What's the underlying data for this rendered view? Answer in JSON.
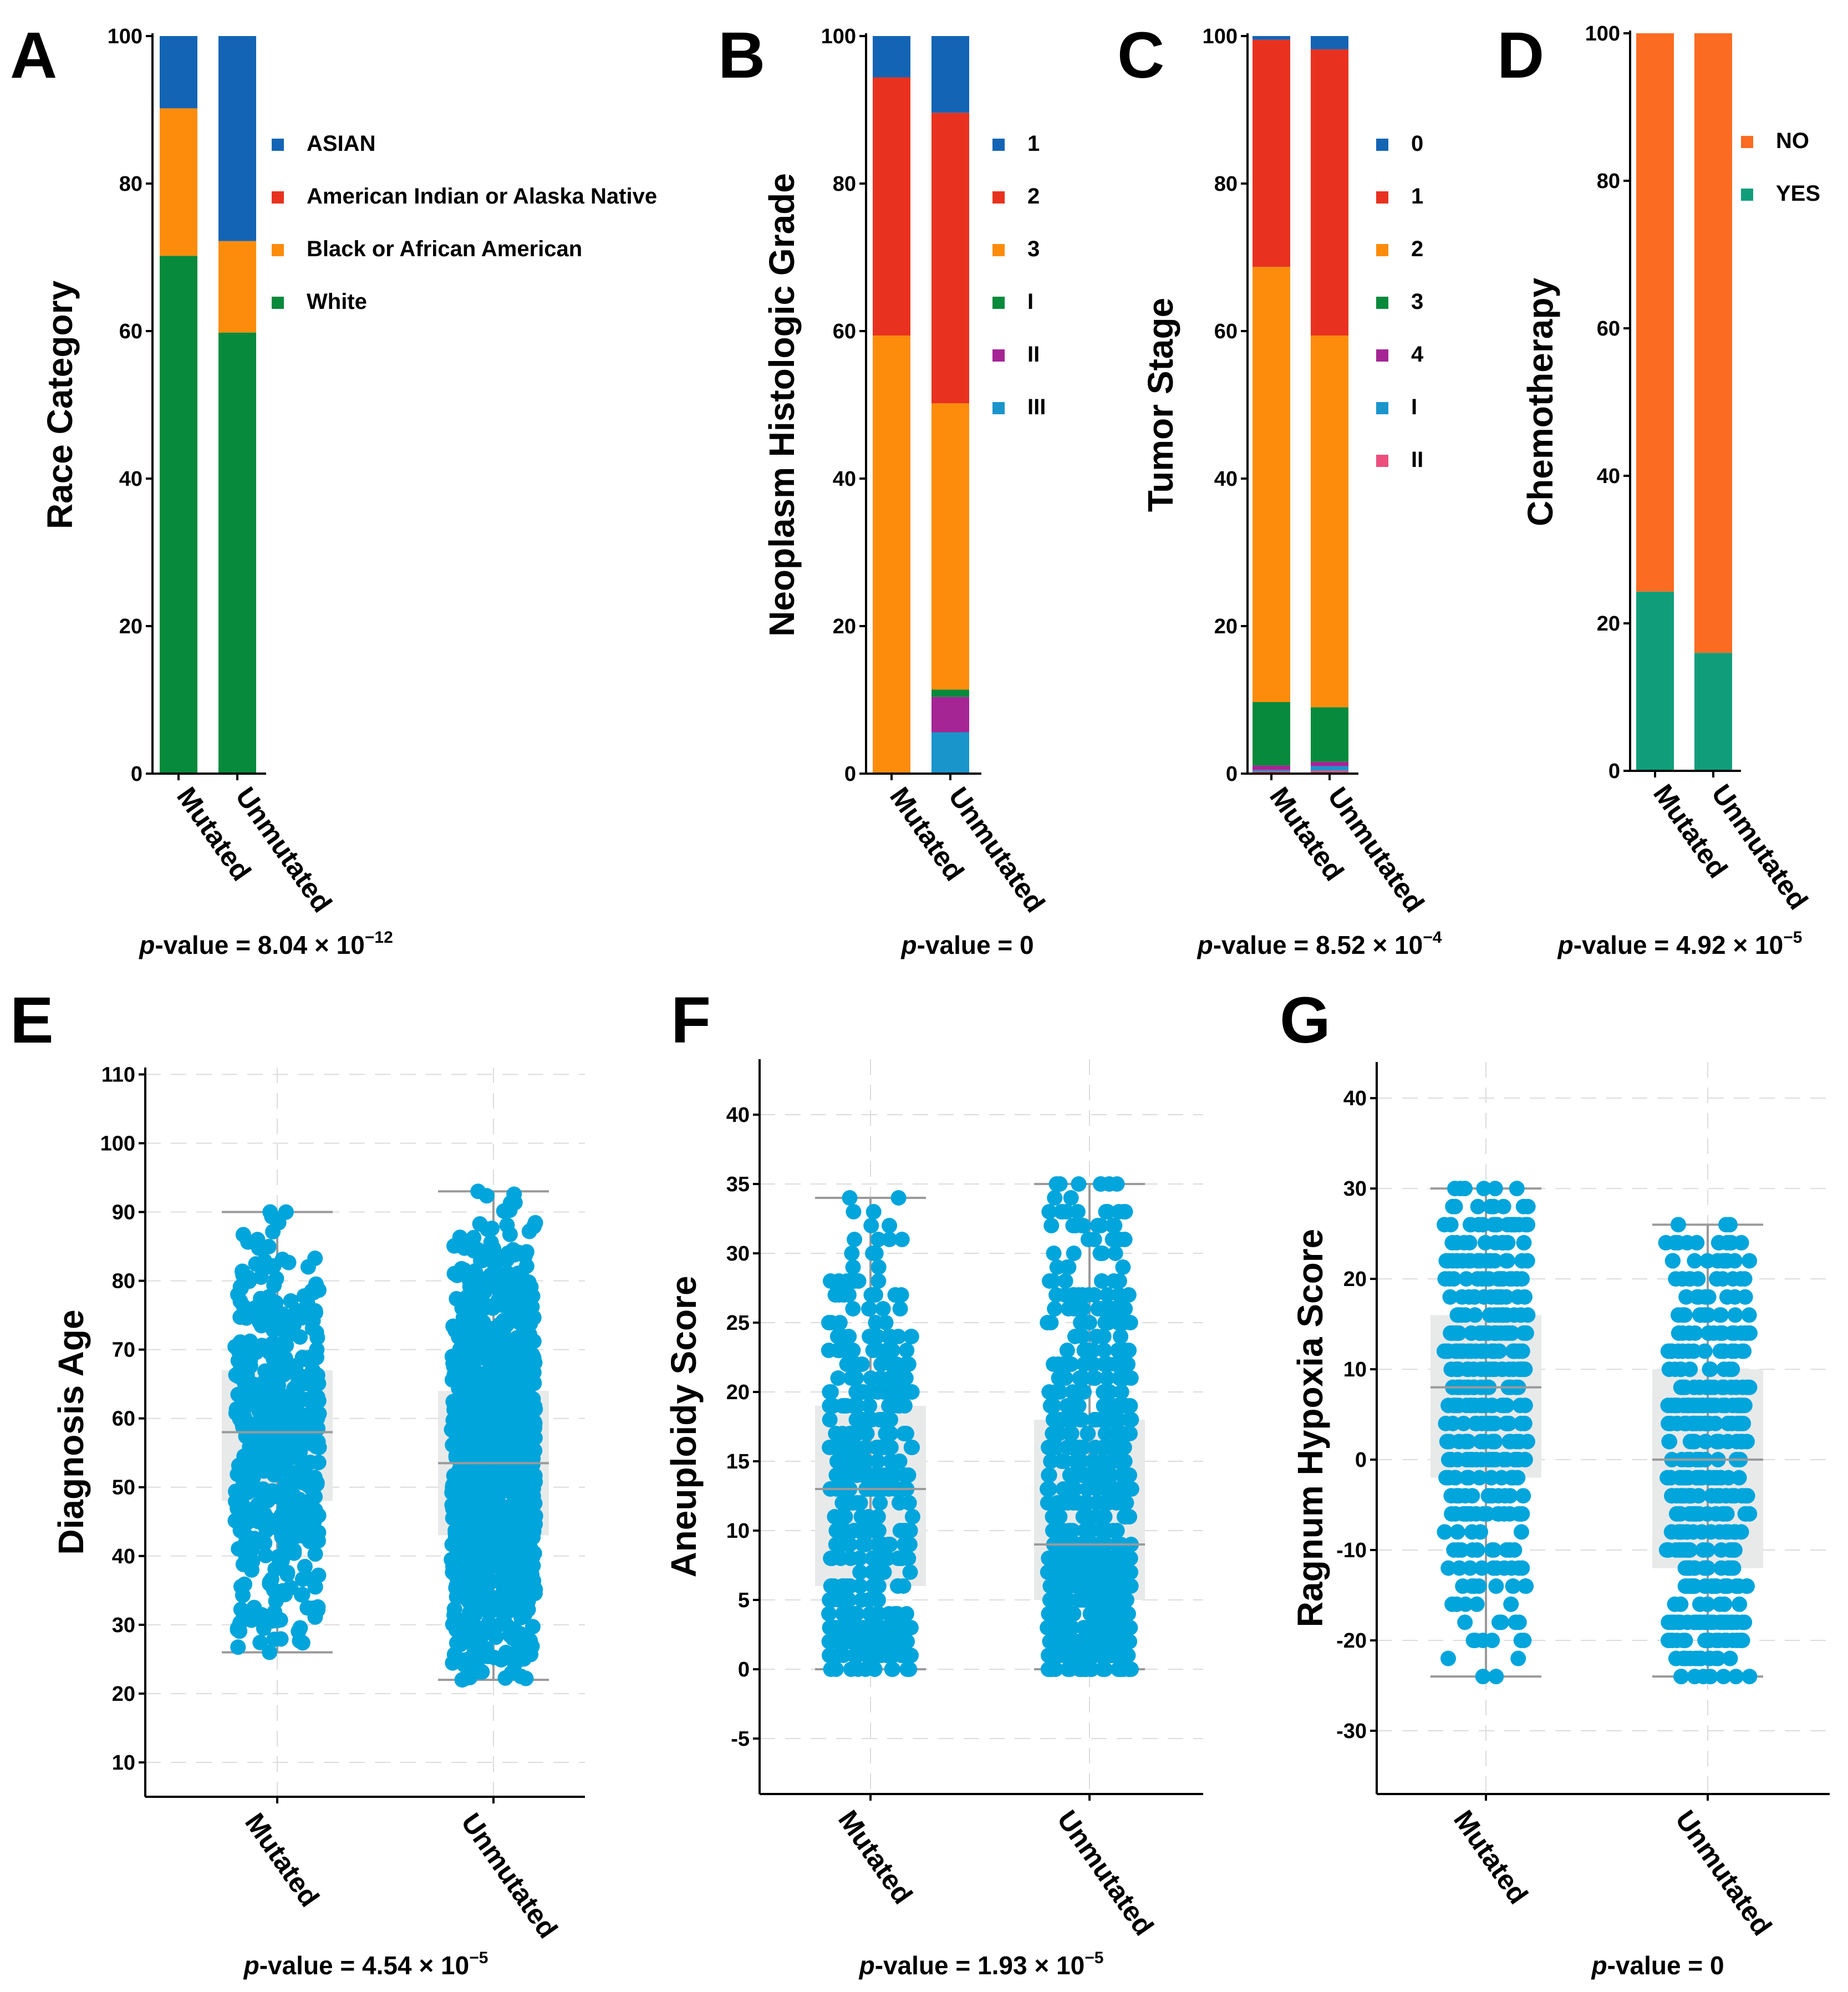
{
  "chart_data": [
    {
      "panel": "A",
      "type": "bar",
      "stacked": true,
      "ylabel": "Race Category",
      "ylim": [
        0,
        100
      ],
      "yticks": [
        "0",
        "20",
        "40",
        "60",
        "80",
        "100"
      ],
      "categories": [
        "Mutated",
        "Unmutated"
      ],
      "series": [
        {
          "name": "White",
          "color": "#078a3b",
          "values": [
            70.2,
            59.8
          ]
        },
        {
          "name": "Black or African American",
          "color": "#fd8c0c",
          "values": [
            20.0,
            12.4
          ]
        },
        {
          "name": "American Indian or Alaska Native",
          "color": "#e8321f",
          "values": [
            0.0,
            0.0
          ]
        },
        {
          "name": "ASIAN",
          "color": "#1364b5",
          "values": [
            9.8,
            27.8
          ]
        }
      ],
      "legend_order": [
        "ASIAN",
        "American Indian or Alaska Native",
        "Black or African American",
        "White"
      ],
      "pvalue": {
        "prefix": "p",
        "body": "-value = 8.04 × 10",
        "exp": "−12"
      }
    },
    {
      "panel": "B",
      "type": "bar",
      "stacked": true,
      "ylabel": "Neoplasm Histologic Grade",
      "ylim": [
        0,
        100
      ],
      "yticks": [
        "0",
        "20",
        "40",
        "60",
        "80",
        "100"
      ],
      "categories": [
        "Mutated",
        "Unmutated"
      ],
      "series": [
        {
          "name": "III",
          "color": "#1a95cc",
          "values": [
            0.0,
            5.6
          ]
        },
        {
          "name": "II",
          "color": "#a52595",
          "values": [
            0.0,
            4.8
          ]
        },
        {
          "name": "I",
          "color": "#078a3b",
          "values": [
            0.0,
            1.0
          ]
        },
        {
          "name": "3",
          "color": "#fd8c0c",
          "values": [
            59.4,
            38.8
          ]
        },
        {
          "name": "2",
          "color": "#e8321f",
          "values": [
            35.0,
            39.4
          ]
        },
        {
          "name": "1",
          "color": "#1364b5",
          "values": [
            5.6,
            10.4
          ]
        }
      ],
      "legend_order": [
        "1",
        "2",
        "3",
        "I",
        "II",
        "III"
      ],
      "pvalue": {
        "prefix": "p",
        "body": "-value = 0",
        "exp": ""
      }
    },
    {
      "panel": "C",
      "type": "bar",
      "stacked": true,
      "ylabel": "Tumor Stage",
      "ylim": [
        0,
        100
      ],
      "yticks": [
        "0",
        "20",
        "40",
        "60",
        "80",
        "100"
      ],
      "categories": [
        "Mutated",
        "Unmutated"
      ],
      "series": [
        {
          "name": "II",
          "color": "#ec4e7d",
          "values": [
            0.3,
            0.4
          ]
        },
        {
          "name": "I",
          "color": "#1a95cc",
          "values": [
            0.2,
            0.6
          ]
        },
        {
          "name": "4",
          "color": "#a52595",
          "values": [
            0.6,
            0.6
          ]
        },
        {
          "name": "3",
          "color": "#078a3b",
          "values": [
            8.6,
            7.4
          ]
        },
        {
          "name": "2",
          "color": "#fd8c0c",
          "values": [
            59.0,
            50.4
          ]
        },
        {
          "name": "1",
          "color": "#e8321f",
          "values": [
            30.8,
            38.8
          ]
        },
        {
          "name": "0",
          "color": "#1364b5",
          "values": [
            0.5,
            1.8
          ]
        }
      ],
      "legend_order": [
        "0",
        "1",
        "2",
        "3",
        "4",
        "I",
        "II"
      ],
      "pvalue": {
        "prefix": "p",
        "body": "-value = 8.52 × 10",
        "exp": "−4"
      }
    },
    {
      "panel": "D",
      "type": "bar",
      "stacked": true,
      "ylabel": "Chemotherapy",
      "ylim": [
        0,
        100
      ],
      "yticks": [
        "0",
        "20",
        "40",
        "60",
        "80",
        "100"
      ],
      "categories": [
        "Mutated",
        "Unmutated"
      ],
      "series": [
        {
          "name": "YES",
          "color": "#109e7a",
          "values": [
            24.3,
            16.0
          ]
        },
        {
          "name": "NO",
          "color": "#fb6b22",
          "values": [
            75.7,
            84.0
          ]
        }
      ],
      "legend_order": [
        "NO",
        "YES"
      ],
      "pvalue": {
        "prefix": "p",
        "body": "-value = 4.92 × 10",
        "exp": "−5"
      }
    },
    {
      "panel": "E",
      "type": "scatter",
      "subtype": "box-jitter",
      "ylabel": "Diagnosis Age",
      "ylim": [
        5,
        111
      ],
      "yticks": [
        "10",
        "20",
        "30",
        "40",
        "50",
        "60",
        "70",
        "80",
        "90",
        "100",
        "110"
      ],
      "categories": [
        "Mutated",
        "Unmutated"
      ],
      "color": "#00a5dc",
      "boxes": [
        {
          "min": 26,
          "q1": 48,
          "median": 58,
          "q3": 67,
          "max": 90,
          "n": 520
        },
        {
          "min": 22,
          "q1": 43,
          "median": 53.5,
          "q3": 64,
          "max": 93,
          "n": 1100
        }
      ],
      "pvalue": {
        "prefix": "p",
        "body": "-value = 4.54 × 10",
        "exp": "−5"
      }
    },
    {
      "panel": "F",
      "type": "scatter",
      "subtype": "box-jitter",
      "ylabel": "Aneuploidy Score",
      "ylim": [
        -9,
        44
      ],
      "yticks": [
        "-5",
        "0",
        "5",
        "10",
        "15",
        "20",
        "25",
        "30",
        "35",
        "40"
      ],
      "categories": [
        "Mutated",
        "Unmutated"
      ],
      "color": "#00a5dc",
      "boxes": [
        {
          "min": 0,
          "q1": 6,
          "median": 13,
          "q3": 19,
          "max": 34,
          "n": 420
        },
        {
          "min": 0,
          "q1": 5,
          "median": 9,
          "q3": 18,
          "max": 35,
          "n": 650
        }
      ],
      "pvalue": {
        "prefix": "p",
        "body": "-value = 1.93 × 10",
        "exp": "−5"
      }
    },
    {
      "panel": "G",
      "type": "scatter",
      "subtype": "box-jitter",
      "ylabel": "Ragnum Hypoxia Score",
      "ylim": [
        -37,
        44
      ],
      "yticks": [
        "-30",
        "-20",
        "-10",
        "0",
        "10",
        "20",
        "30",
        "40"
      ],
      "categories": [
        "Mutated",
        "Unmutated"
      ],
      "color": "#00a5dc",
      "boxes": [
        {
          "min": -24,
          "q1": -2,
          "median": 8,
          "q3": 16,
          "max": 30,
          "n": 380
        },
        {
          "min": -24,
          "q1": -12,
          "median": 0,
          "q3": 10,
          "max": 26,
          "n": 420
        }
      ],
      "pvalue": {
        "prefix": "p",
        "body": "-value = 0",
        "exp": ""
      }
    }
  ]
}
